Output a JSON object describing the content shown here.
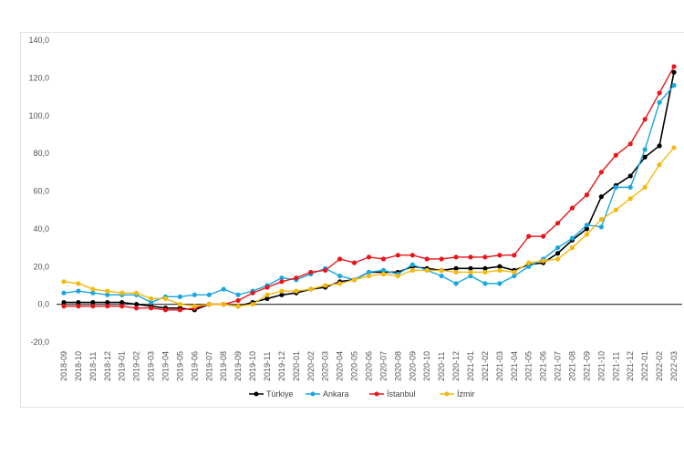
{
  "chart_data": {
    "type": "line",
    "title": "",
    "xlabel": "",
    "ylabel": "",
    "ylim": [
      -20,
      140
    ],
    "yticks": [
      "-20,0",
      "0,0",
      "20,0",
      "40,0",
      "60,0",
      "80,0",
      "100,0",
      "120,0",
      "140,0"
    ],
    "ytick_values": [
      -20,
      0,
      20,
      40,
      60,
      80,
      100,
      120,
      140
    ],
    "grid": false,
    "legend_position": "bottom",
    "categories": [
      "2018-09",
      "2018-10",
      "2018-11",
      "2018-12",
      "2019-01",
      "2019-02",
      "2019-03",
      "2019-04",
      "2019-05",
      "2019-06",
      "2019-07",
      "2019-08",
      "2019-09",
      "2019-10",
      "2019-11",
      "2019-12",
      "2020-01",
      "2020-02",
      "2020-03",
      "2020-04",
      "2020-05",
      "2020-06",
      "2020-07",
      "2020-08",
      "2020-09",
      "2020-10",
      "2020-11",
      "2020-12",
      "2021-01",
      "2021-02",
      "2021-03",
      "2021-04",
      "2021-05",
      "2021-06",
      "2021-07",
      "2021-08",
      "2021-09",
      "2021-10",
      "2021-11",
      "2021-12",
      "2022-01",
      "2022-02",
      "2022-03"
    ],
    "series": [
      {
        "name": "Türkiye",
        "color": "#000000",
        "values": [
          1,
          1,
          1,
          1,
          1,
          0,
          -1,
          -2,
          -2,
          -3,
          0,
          0,
          -1,
          1,
          3,
          5,
          6,
          8,
          9,
          12,
          13,
          17,
          17,
          17,
          20,
          19,
          18,
          19,
          19,
          19,
          20,
          18,
          21,
          22,
          27,
          34,
          40,
          57,
          63,
          68,
          78,
          84,
          123
        ]
      },
      {
        "name": "Ankara",
        "color": "#1aa7e0",
        "values": [
          6,
          7,
          6,
          5,
          5,
          5,
          1,
          4,
          4,
          5,
          5,
          8,
          5,
          7,
          10,
          14,
          13,
          16,
          19,
          15,
          13,
          17,
          18,
          16,
          21,
          18,
          15,
          11,
          15,
          11,
          11,
          15,
          20,
          24,
          30,
          35,
          42,
          41,
          62,
          62,
          82,
          107,
          116
        ]
      },
      {
        "name": "İstanbul",
        "color": "#e8161b",
        "values": [
          -1,
          -1,
          -1,
          -1,
          -1,
          -2,
          -2,
          -3,
          -3,
          -2,
          0,
          0,
          2,
          6,
          9,
          12,
          14,
          17,
          18,
          24,
          22,
          25,
          24,
          26,
          26,
          24,
          24,
          25,
          25,
          25,
          26,
          26,
          36,
          36,
          43,
          51,
          58,
          70,
          79,
          85,
          98,
          112,
          126
        ]
      },
      {
        "name": "İzmir",
        "color": "#f4b90f",
        "values": [
          12,
          11,
          8,
          7,
          6,
          6,
          3,
          3,
          0,
          -1,
          0,
          0,
          -1,
          0,
          5,
          7,
          7,
          8,
          10,
          11,
          13,
          15,
          16,
          15,
          18,
          18,
          18,
          17,
          17,
          17,
          18,
          17,
          22,
          23,
          24,
          30,
          37,
          45,
          50,
          56,
          62,
          74,
          83
        ]
      }
    ]
  }
}
